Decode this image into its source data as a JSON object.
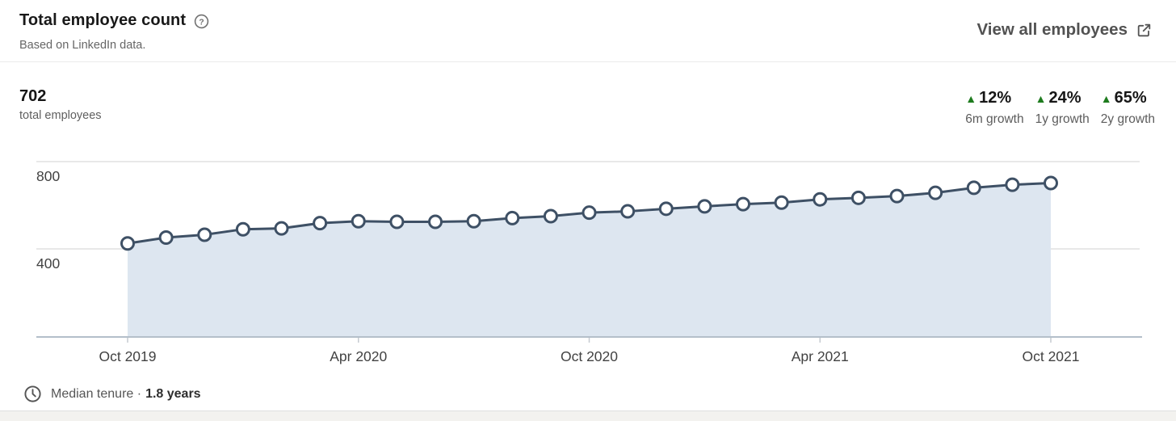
{
  "header": {
    "title": "Total employee count",
    "help_icon": "question-mark-circle-icon",
    "subtitle": "Based on LinkedIn data.",
    "view_all_label": "View all employees",
    "view_all_icon": "external-link-icon"
  },
  "summary": {
    "total_value": "702",
    "total_label": "total employees",
    "growth_up_color": "#1e7b1e",
    "growth_stats": [
      {
        "direction": "up",
        "value": "12%",
        "label": "6m growth"
      },
      {
        "direction": "up",
        "value": "24%",
        "label": "1y growth"
      },
      {
        "direction": "up",
        "value": "65%",
        "label": "2y growth"
      }
    ]
  },
  "chart_data": {
    "type": "area",
    "title": "Total employee count",
    "x": [
      "Oct 2019",
      "Nov 2019",
      "Dec 2019",
      "Jan 2020",
      "Feb 2020",
      "Mar 2020",
      "Apr 2020",
      "May 2020",
      "Jun 2020",
      "Jul 2020",
      "Aug 2020",
      "Sep 2020",
      "Oct 2020",
      "Nov 2020",
      "Dec 2020",
      "Jan 2021",
      "Feb 2021",
      "Mar 2021",
      "Apr 2021",
      "May 2021",
      "Jun 2021",
      "Jul 2021",
      "Aug 2021",
      "Sep 2021",
      "Oct 2021"
    ],
    "values": [
      425,
      452,
      465,
      490,
      494,
      518,
      527,
      524,
      524,
      527,
      541,
      550,
      566,
      572,
      584,
      595,
      605,
      612,
      627,
      634,
      642,
      657,
      680,
      694,
      702
    ],
    "x_tick_labels": [
      "Oct 2019",
      "Apr 2020",
      "Oct 2020",
      "Apr 2021",
      "Oct 2021"
    ],
    "x_tick_indices": [
      0,
      6,
      12,
      18,
      24
    ],
    "y_ticks": [
      400,
      800
    ],
    "ylim": [
      0,
      880
    ],
    "xlabel": "",
    "ylabel": "",
    "grid": "horizontal",
    "legend": "none",
    "marker": "open-circle",
    "line_color": "#3e5065",
    "fill_color": "#dde6f0",
    "axis_color": "#b4bfca",
    "grid_color": "#e1e1e1",
    "tick_color": "#c6cbd1"
  },
  "footer": {
    "clock_icon": "clock-icon",
    "label": "Median tenure ·",
    "value": "1.8 years"
  }
}
